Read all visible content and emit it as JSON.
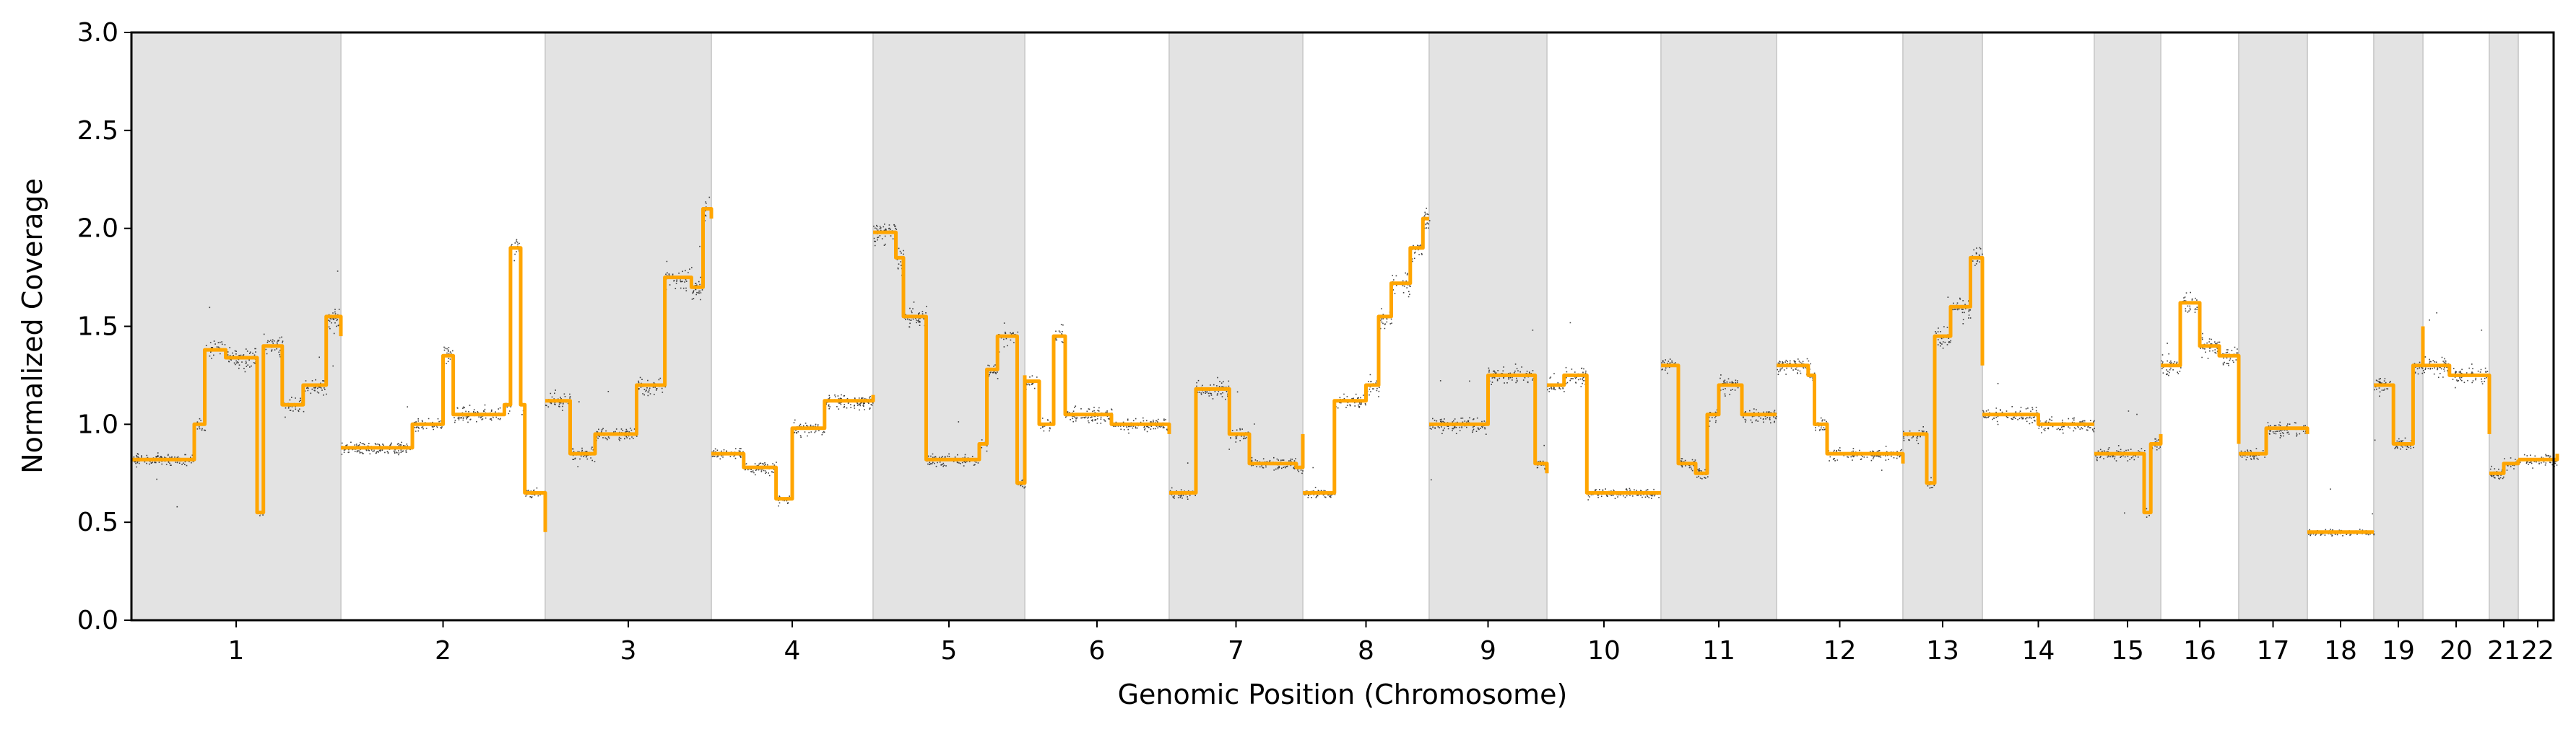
{
  "chart_data": {
    "type": "scatter",
    "title": "",
    "xlabel": "Genomic Position (Chromosome)",
    "ylabel": "Normalized Coverage",
    "ylim": [
      0,
      3
    ],
    "yticks": [
      "0.0",
      "0.5",
      "1.0",
      "1.5",
      "2.0",
      "2.5",
      "3.0"
    ],
    "grid": false,
    "legend": "none",
    "colors": {
      "points": "#000000",
      "segments": "#FFA500",
      "band": "#e3e3e3",
      "band_edge": "#cfcfcf"
    },
    "chromosomes": [
      {
        "label": "1",
        "shaded": true,
        "segments": [
          [
            0.0,
            0.82
          ],
          [
            0.3,
            1.0
          ],
          [
            0.35,
            1.38
          ],
          [
            0.45,
            1.34
          ],
          [
            0.57,
            1.34
          ],
          [
            0.6,
            0.55
          ],
          [
            0.63,
            1.4
          ],
          [
            0.72,
            1.1
          ],
          [
            0.82,
            1.2
          ],
          [
            0.93,
            1.55
          ],
          [
            1.0,
            1.45
          ]
        ]
      },
      {
        "label": "2",
        "shaded": false,
        "segments": [
          [
            0.0,
            0.88
          ],
          [
            0.35,
            1.0
          ],
          [
            0.5,
            1.35
          ],
          [
            0.55,
            1.05
          ],
          [
            0.8,
            1.1
          ],
          [
            0.83,
            1.9
          ],
          [
            0.88,
            1.1
          ],
          [
            0.9,
            0.65
          ],
          [
            1.0,
            0.45
          ]
        ]
      },
      {
        "label": "3",
        "shaded": true,
        "segments": [
          [
            0.0,
            1.12
          ],
          [
            0.15,
            0.85
          ],
          [
            0.3,
            0.95
          ],
          [
            0.55,
            1.2
          ],
          [
            0.72,
            1.75
          ],
          [
            0.88,
            1.7
          ],
          [
            0.95,
            2.1
          ],
          [
            1.0,
            2.05
          ]
        ]
      },
      {
        "label": "4",
        "shaded": false,
        "segments": [
          [
            0.0,
            0.85
          ],
          [
            0.2,
            0.78
          ],
          [
            0.4,
            0.62
          ],
          [
            0.5,
            0.98
          ],
          [
            0.7,
            1.12
          ],
          [
            1.0,
            1.15
          ]
        ]
      },
      {
        "label": "5",
        "shaded": true,
        "segments": [
          [
            0.0,
            1.98
          ],
          [
            0.15,
            1.85
          ],
          [
            0.2,
            1.55
          ],
          [
            0.35,
            0.82
          ],
          [
            0.7,
            0.9
          ],
          [
            0.75,
            1.28
          ],
          [
            0.82,
            1.45
          ],
          [
            0.95,
            0.7
          ],
          [
            1.0,
            1.25
          ]
        ]
      },
      {
        "label": "6",
        "shaded": false,
        "segments": [
          [
            0.0,
            1.22
          ],
          [
            0.1,
            1.0
          ],
          [
            0.2,
            1.45
          ],
          [
            0.28,
            1.05
          ],
          [
            0.6,
            1.0
          ],
          [
            1.0,
            0.95
          ]
        ]
      },
      {
        "label": "7",
        "shaded": true,
        "segments": [
          [
            0.0,
            0.65
          ],
          [
            0.2,
            1.18
          ],
          [
            0.45,
            0.95
          ],
          [
            0.6,
            0.8
          ],
          [
            0.95,
            0.78
          ],
          [
            1.0,
            0.95
          ]
        ]
      },
      {
        "label": "8",
        "shaded": false,
        "segments": [
          [
            0.0,
            0.65
          ],
          [
            0.25,
            1.12
          ],
          [
            0.5,
            1.2
          ],
          [
            0.6,
            1.55
          ],
          [
            0.7,
            1.72
          ],
          [
            0.85,
            1.9
          ],
          [
            0.95,
            2.05
          ],
          [
            1.0,
            2.05
          ]
        ]
      },
      {
        "label": "9",
        "shaded": true,
        "segments": [
          [
            0.0,
            1.0
          ],
          [
            0.3,
            1.0
          ],
          [
            0.5,
            1.25
          ],
          [
            0.7,
            1.25
          ],
          [
            0.9,
            0.8
          ],
          [
            1.0,
            0.75
          ]
        ]
      },
      {
        "label": "10",
        "shaded": false,
        "segments": [
          [
            0.0,
            1.2
          ],
          [
            0.15,
            1.25
          ],
          [
            0.35,
            0.65
          ],
          [
            1.0,
            0.65
          ]
        ]
      },
      {
        "label": "11",
        "shaded": true,
        "segments": [
          [
            0.0,
            1.3
          ],
          [
            0.15,
            0.8
          ],
          [
            0.3,
            0.75
          ],
          [
            0.4,
            1.05
          ],
          [
            0.5,
            1.2
          ],
          [
            0.7,
            1.05
          ],
          [
            1.0,
            1.05
          ]
        ]
      },
      {
        "label": "12",
        "shaded": false,
        "segments": [
          [
            0.0,
            1.3
          ],
          [
            0.25,
            1.25
          ],
          [
            0.3,
            1.0
          ],
          [
            0.4,
            0.85
          ],
          [
            1.0,
            0.8
          ]
        ]
      },
      {
        "label": "13",
        "shaded": true,
        "segments": [
          [
            0.0,
            0.95
          ],
          [
            0.3,
            0.7
          ],
          [
            0.4,
            1.45
          ],
          [
            0.6,
            1.6
          ],
          [
            0.85,
            1.85
          ],
          [
            1.0,
            1.3
          ]
        ]
      },
      {
        "label": "14",
        "shaded": false,
        "segments": [
          [
            0.0,
            1.05
          ],
          [
            0.5,
            1.0
          ],
          [
            1.0,
            1.0
          ]
        ]
      },
      {
        "label": "15",
        "shaded": true,
        "segments": [
          [
            0.0,
            0.85
          ],
          [
            0.5,
            0.85
          ],
          [
            0.75,
            0.55
          ],
          [
            0.85,
            0.9
          ],
          [
            1.0,
            0.95
          ]
        ]
      },
      {
        "label": "16",
        "shaded": false,
        "segments": [
          [
            0.0,
            1.3
          ],
          [
            0.25,
            1.62
          ],
          [
            0.5,
            1.4
          ],
          [
            0.75,
            1.35
          ],
          [
            1.0,
            0.9
          ]
        ]
      },
      {
        "label": "17",
        "shaded": true,
        "segments": [
          [
            0.0,
            0.85
          ],
          [
            0.4,
            0.98
          ],
          [
            0.8,
            0.98
          ],
          [
            1.0,
            0.95
          ]
        ]
      },
      {
        "label": "18",
        "shaded": false,
        "segments": [
          [
            0.0,
            0.45
          ],
          [
            1.0,
            0.45
          ]
        ]
      },
      {
        "label": "19",
        "shaded": true,
        "segments": [
          [
            0.0,
            1.2
          ],
          [
            0.4,
            0.9
          ],
          [
            0.8,
            1.3
          ],
          [
            1.0,
            1.5
          ]
        ]
      },
      {
        "label": "20",
        "shaded": false,
        "segments": [
          [
            0.0,
            1.3
          ],
          [
            0.4,
            1.25
          ],
          [
            0.8,
            1.25
          ],
          [
            1.0,
            0.95
          ]
        ]
      },
      {
        "label": "21",
        "shaded": true,
        "segments": [
          [
            0.0,
            0.75
          ],
          [
            0.5,
            0.8
          ],
          [
            1.0,
            0.82
          ]
        ]
      },
      {
        "label": "22",
        "shaded": false,
        "segments": [
          [
            0.0,
            0.82
          ],
          [
            1.0,
            0.85
          ]
        ]
      }
    ]
  }
}
